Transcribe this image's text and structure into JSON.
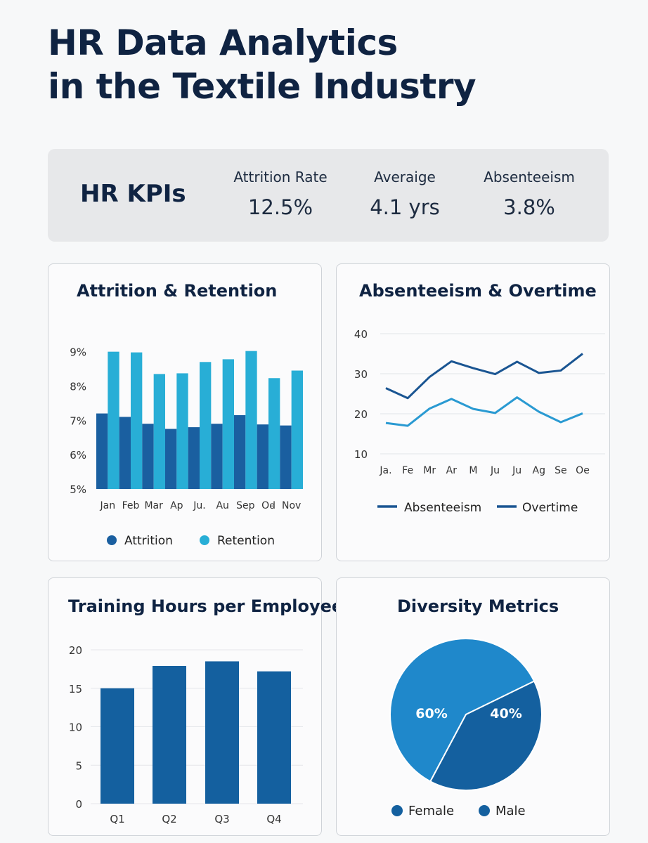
{
  "title_line1": "HR Data Analytics",
  "title_line2": "in the Textile Industry",
  "kpis": {
    "heading": "HR KPIs",
    "items": [
      {
        "label": "Attrition Rate",
        "value": "12.5%"
      },
      {
        "label": "Averaige",
        "value": "4.1 yrs"
      },
      {
        "label": "Absenteeism",
        "value": "3.8%"
      }
    ]
  },
  "colors": {
    "dark_blue": "#1a5fa0",
    "light_blue": "#28aed6",
    "line_dark": "#1a5592",
    "line_light": "#2a9ad2",
    "pie_light": "#1f88cb",
    "pie_dark": "#14609f"
  },
  "chart_data": [
    {
      "type": "bar",
      "title": "Attrition & Retention",
      "categories": [
        "Jan",
        "Feb",
        "Mar",
        "Ap",
        "Ju.",
        "Au",
        "Sep",
        "Oꟈ",
        "Nov"
      ],
      "series": [
        {
          "name": "Attrition",
          "values": [
            7.2,
            7.1,
            6.9,
            6.75,
            6.8,
            6.9,
            7.15,
            6.88,
            6.85
          ]
        },
        {
          "name": "Retention",
          "values": [
            9.0,
            8.98,
            8.35,
            8.37,
            8.7,
            8.78,
            9.02,
            8.23,
            8.45
          ]
        }
      ],
      "yticks": [
        "9%",
        "8%",
        "7%",
        "6%",
        "5%"
      ],
      "ylim": [
        5,
        9.3
      ]
    },
    {
      "type": "line",
      "title": "Absenteeism & Overtime",
      "categories": [
        "Ja.",
        "Fe",
        "Mr",
        "Ar",
        "M",
        "Ju",
        "Ju",
        "Ag",
        "Se",
        "Oe"
      ],
      "series": [
        {
          "name": "Absenteeism",
          "values": [
            17.7,
            17.0,
            21.3,
            23.7,
            21.2,
            20.2,
            24.1,
            20.5,
            17.9,
            20.1
          ]
        },
        {
          "name": "Overtime",
          "values": [
            26.4,
            23.9,
            29.2,
            33.1,
            31.4,
            29.9,
            33.0,
            30.2,
            30.8,
            35.0
          ]
        }
      ],
      "yticks": [
        "40",
        "30",
        "20",
        "10"
      ],
      "ylim": [
        10,
        40
      ]
    },
    {
      "type": "bar",
      "title": "Training Hours per Employee",
      "categories": [
        "Q1",
        "Q2",
        "Q3",
        "Q4"
      ],
      "values": [
        15.0,
        17.9,
        18.5,
        17.2
      ],
      "yticks": [
        "20",
        "15",
        "10",
        "5",
        "0"
      ],
      "ylim": [
        0,
        20
      ]
    },
    {
      "type": "pie",
      "title": "Diversity Metrics",
      "slices": [
        {
          "name": "Female",
          "value": 60,
          "label": "60%"
        },
        {
          "name": "Male",
          "value": 40,
          "label": "40%"
        }
      ],
      "legend": [
        "Female",
        "Male"
      ]
    }
  ]
}
